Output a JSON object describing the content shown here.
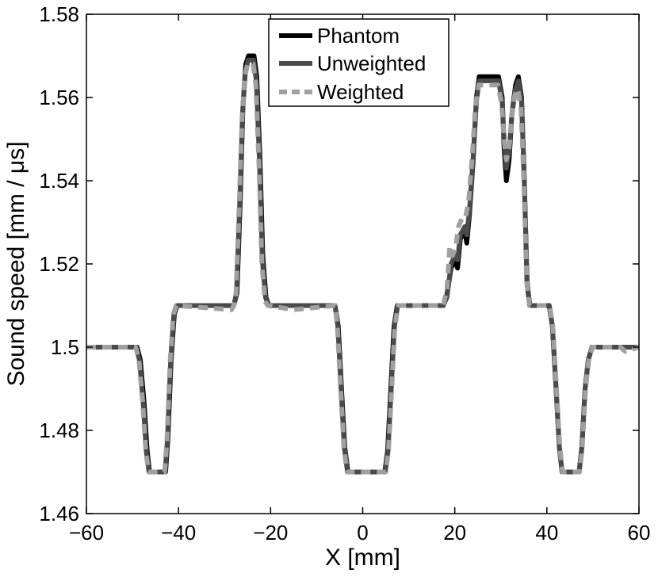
{
  "chart_data": {
    "type": "line",
    "title": "",
    "xlabel": "X [mm]",
    "ylabel": "Sound speed [mm / μs]",
    "xlim": [
      -60,
      60
    ],
    "ylim": [
      1.46,
      1.58
    ],
    "xticks": [
      -60,
      -40,
      -20,
      0,
      20,
      40,
      60
    ],
    "xtick_labels": [
      "−60",
      "−40",
      "−20",
      "0",
      "20",
      "40",
      "60"
    ],
    "yticks": [
      1.46,
      1.48,
      1.5,
      1.52,
      1.54,
      1.56,
      1.58
    ],
    "ytick_labels": [
      "1.46",
      "1.48",
      "1.5",
      "1.52",
      "1.54",
      "1.56",
      "1.58"
    ],
    "grid": false,
    "legend_position": "top-center",
    "series": [
      {
        "name": "Phantom",
        "color": "#000000",
        "style": "solid",
        "points": [
          [
            -60,
            1.5
          ],
          [
            -49,
            1.5
          ],
          [
            -48.3,
            1.497
          ],
          [
            -47.5,
            1.487
          ],
          [
            -46.8,
            1.475
          ],
          [
            -46.3,
            1.47
          ],
          [
            -42.8,
            1.47
          ],
          [
            -42.3,
            1.478
          ],
          [
            -41.6,
            1.497
          ],
          [
            -40.9,
            1.508
          ],
          [
            -40.3,
            1.51
          ],
          [
            -28,
            1.51
          ],
          [
            -27.3,
            1.513
          ],
          [
            -26.6,
            1.535
          ],
          [
            -26,
            1.558
          ],
          [
            -25.4,
            1.568
          ],
          [
            -24.8,
            1.57
          ],
          [
            -23.6,
            1.57
          ],
          [
            -23,
            1.565
          ],
          [
            -22.3,
            1.545
          ],
          [
            -21.7,
            1.522
          ],
          [
            -21,
            1.512
          ],
          [
            -20.4,
            1.51
          ],
          [
            -6,
            1.51
          ],
          [
            -5.3,
            1.505
          ],
          [
            -4.6,
            1.49
          ],
          [
            -3.9,
            1.476
          ],
          [
            -3.2,
            1.47
          ],
          [
            4.8,
            1.47
          ],
          [
            5.4,
            1.475
          ],
          [
            6.1,
            1.49
          ],
          [
            6.8,
            1.505
          ],
          [
            7.5,
            1.51
          ],
          [
            17.5,
            1.51
          ],
          [
            18.2,
            1.512
          ],
          [
            19.2,
            1.519
          ],
          [
            20,
            1.521
          ],
          [
            20.6,
            1.519
          ],
          [
            21.2,
            1.526
          ],
          [
            22.2,
            1.528
          ],
          [
            22.6,
            1.525
          ],
          [
            23.2,
            1.532
          ],
          [
            24,
            1.545
          ],
          [
            24.7,
            1.56
          ],
          [
            25.3,
            1.565
          ],
          [
            29.5,
            1.565
          ],
          [
            30.3,
            1.56
          ],
          [
            30.7,
            1.548
          ],
          [
            31.2,
            1.54
          ],
          [
            31.8,
            1.545
          ],
          [
            32.4,
            1.556
          ],
          [
            33.2,
            1.563
          ],
          [
            33.8,
            1.565
          ],
          [
            34.5,
            1.56
          ],
          [
            35.1,
            1.54
          ],
          [
            35.7,
            1.515
          ],
          [
            36.3,
            1.51
          ],
          [
            40.5,
            1.51
          ],
          [
            41.2,
            1.505
          ],
          [
            42,
            1.49
          ],
          [
            42.7,
            1.476
          ],
          [
            43.3,
            1.47
          ],
          [
            47,
            1.47
          ],
          [
            47.6,
            1.476
          ],
          [
            48.3,
            1.49
          ],
          [
            49,
            1.497
          ],
          [
            49.8,
            1.5
          ],
          [
            60,
            1.5
          ]
        ]
      },
      {
        "name": "Unweighted",
        "color": "#4a4a4a",
        "style": "solid",
        "points": [
          [
            -60,
            1.5
          ],
          [
            -49.2,
            1.5
          ],
          [
            -48.5,
            1.497
          ],
          [
            -47.7,
            1.487
          ],
          [
            -47,
            1.475
          ],
          [
            -46.4,
            1.47
          ],
          [
            -42.9,
            1.47
          ],
          [
            -42.4,
            1.478
          ],
          [
            -41.7,
            1.497
          ],
          [
            -41,
            1.508
          ],
          [
            -40.4,
            1.51
          ],
          [
            -28,
            1.51
          ],
          [
            -27.4,
            1.513
          ],
          [
            -26.7,
            1.535
          ],
          [
            -26.1,
            1.556
          ],
          [
            -25.5,
            1.566
          ],
          [
            -24.9,
            1.569
          ],
          [
            -23.7,
            1.569
          ],
          [
            -23.1,
            1.564
          ],
          [
            -22.4,
            1.544
          ],
          [
            -21.8,
            1.521
          ],
          [
            -21.1,
            1.512
          ],
          [
            -20.5,
            1.51
          ],
          [
            -6,
            1.51
          ],
          [
            -5.4,
            1.505
          ],
          [
            -4.7,
            1.49
          ],
          [
            -4,
            1.476
          ],
          [
            -3.3,
            1.47
          ],
          [
            4.9,
            1.47
          ],
          [
            5.5,
            1.475
          ],
          [
            6.2,
            1.49
          ],
          [
            6.9,
            1.505
          ],
          [
            7.6,
            1.51
          ],
          [
            17.5,
            1.51
          ],
          [
            18.3,
            1.512
          ],
          [
            19.2,
            1.52
          ],
          [
            20,
            1.522
          ],
          [
            20.6,
            1.521
          ],
          [
            21.2,
            1.527
          ],
          [
            22.2,
            1.529
          ],
          [
            22.6,
            1.527
          ],
          [
            23.2,
            1.533
          ],
          [
            24,
            1.546
          ],
          [
            24.7,
            1.559
          ],
          [
            25.3,
            1.564
          ],
          [
            29.5,
            1.564
          ],
          [
            30.3,
            1.559
          ],
          [
            30.7,
            1.55
          ],
          [
            31.2,
            1.543
          ],
          [
            31.8,
            1.547
          ],
          [
            32.4,
            1.556
          ],
          [
            33.2,
            1.562
          ],
          [
            33.8,
            1.564
          ],
          [
            34.5,
            1.559
          ],
          [
            35.1,
            1.54
          ],
          [
            35.7,
            1.516
          ],
          [
            36.3,
            1.51
          ],
          [
            40.5,
            1.51
          ],
          [
            41.2,
            1.505
          ],
          [
            42,
            1.49
          ],
          [
            42.7,
            1.476
          ],
          [
            43.3,
            1.47
          ],
          [
            47,
            1.47
          ],
          [
            47.6,
            1.476
          ],
          [
            48.3,
            1.49
          ],
          [
            49,
            1.497
          ],
          [
            49.8,
            1.5
          ],
          [
            60,
            1.5
          ]
        ]
      },
      {
        "name": "Weighted",
        "color": "#a0a0a0",
        "style": "dashed",
        "points": [
          [
            -60,
            1.5
          ],
          [
            -49.3,
            1.5
          ],
          [
            -48.6,
            1.497
          ],
          [
            -47.8,
            1.487
          ],
          [
            -47.1,
            1.475
          ],
          [
            -46.5,
            1.47
          ],
          [
            -43,
            1.47
          ],
          [
            -42.5,
            1.478
          ],
          [
            -41.8,
            1.497
          ],
          [
            -41.1,
            1.508
          ],
          [
            -40.5,
            1.51
          ],
          [
            -28.5,
            1.509
          ],
          [
            -28,
            1.51
          ],
          [
            -27.5,
            1.513
          ],
          [
            -26.8,
            1.535
          ],
          [
            -26.2,
            1.555
          ],
          [
            -25.6,
            1.565
          ],
          [
            -25,
            1.568
          ],
          [
            -23.8,
            1.568
          ],
          [
            -23.2,
            1.563
          ],
          [
            -22.5,
            1.543
          ],
          [
            -21.9,
            1.52
          ],
          [
            -21.2,
            1.511
          ],
          [
            -20.6,
            1.51
          ],
          [
            -15,
            1.509
          ],
          [
            -6,
            1.51
          ],
          [
            -5.5,
            1.505
          ],
          [
            -4.8,
            1.49
          ],
          [
            -4.1,
            1.476
          ],
          [
            -3.4,
            1.47
          ],
          [
            5,
            1.47
          ],
          [
            5.6,
            1.475
          ],
          [
            6.3,
            1.49
          ],
          [
            7,
            1.505
          ],
          [
            7.7,
            1.51
          ],
          [
            17.5,
            1.51
          ],
          [
            18.3,
            1.514
          ],
          [
            18.9,
            1.524
          ],
          [
            19.5,
            1.522
          ],
          [
            20.2,
            1.524
          ],
          [
            20.8,
            1.529
          ],
          [
            21.6,
            1.531
          ],
          [
            22.3,
            1.531
          ],
          [
            23,
            1.535
          ],
          [
            23.8,
            1.546
          ],
          [
            24.5,
            1.558
          ],
          [
            25.2,
            1.563
          ],
          [
            29.4,
            1.563
          ],
          [
            30.2,
            1.558
          ],
          [
            30.7,
            1.55
          ],
          [
            31.2,
            1.545
          ],
          [
            31.8,
            1.548
          ],
          [
            32.4,
            1.556
          ],
          [
            33.1,
            1.561
          ],
          [
            33.7,
            1.562
          ],
          [
            34.4,
            1.557
          ],
          [
            35,
            1.54
          ],
          [
            35.6,
            1.516
          ],
          [
            36.2,
            1.51
          ],
          [
            40.6,
            1.51
          ],
          [
            41.3,
            1.505
          ],
          [
            42.1,
            1.49
          ],
          [
            42.8,
            1.476
          ],
          [
            43.4,
            1.47
          ],
          [
            47.1,
            1.47
          ],
          [
            47.7,
            1.476
          ],
          [
            48.4,
            1.49
          ],
          [
            49.1,
            1.497
          ],
          [
            49.9,
            1.5
          ],
          [
            56,
            1.5
          ],
          [
            57,
            1.499
          ],
          [
            60,
            1.5
          ]
        ]
      }
    ]
  }
}
